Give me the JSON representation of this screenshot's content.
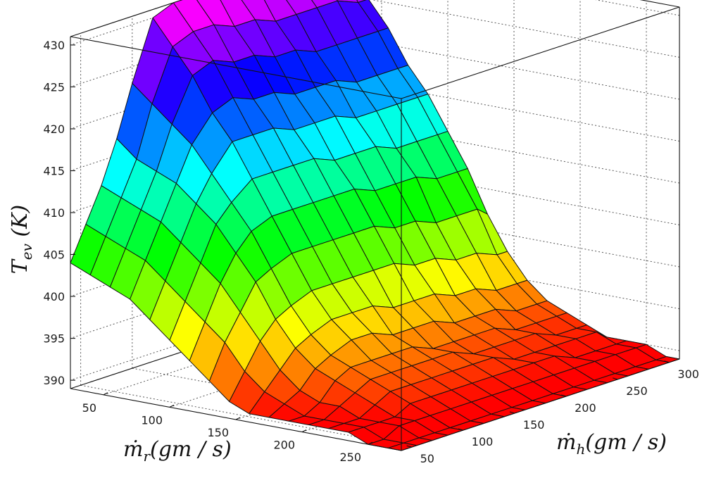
{
  "chart_data": {
    "type": "surface3d",
    "zlabel": {
      "main": "T",
      "sub": "ev",
      "rest": " (K)"
    },
    "xlabel": {
      "main": "ṁ",
      "sub": "r",
      "rest": "(gm / s)"
    },
    "ylabel": {
      "main": "ṁ",
      "sub": "h",
      "rest": "(gm / s)"
    },
    "x_range": [
      25,
      275
    ],
    "y_range": [
      40,
      310
    ],
    "z_range": [
      389,
      431
    ],
    "x_ticks": [
      50,
      100,
      150,
      200,
      250
    ],
    "y_ticks": [
      50,
      100,
      150,
      200,
      250,
      300
    ],
    "z_ticks": [
      390,
      395,
      400,
      405,
      410,
      415,
      420,
      425,
      430
    ],
    "grid": true,
    "colormap": "hsv",
    "mr": [
      25,
      40,
      55,
      70,
      85,
      100,
      115,
      130,
      145,
      160,
      175,
      190,
      205,
      220,
      235,
      250,
      265,
      275
    ],
    "mh": [
      40,
      55,
      70,
      85,
      100,
      120,
      140,
      160,
      180,
      200,
      220,
      240,
      260,
      280,
      300,
      310
    ],
    "t_ev": [
      [
        404,
        408,
        412,
        417,
        423,
        430,
        431,
        431,
        431,
        430,
        430,
        429,
        429,
        429,
        429,
        429
      ],
      [
        403,
        407,
        411,
        415,
        421,
        427,
        428,
        428,
        427,
        427,
        426,
        426,
        426,
        426,
        425,
        425
      ],
      [
        402,
        406,
        410,
        414,
        419,
        424,
        425,
        424,
        424,
        423,
        423,
        422,
        422,
        422,
        422,
        422
      ],
      [
        401,
        405,
        409,
        413,
        417,
        420,
        421,
        420,
        420,
        419,
        419,
        419,
        418,
        418,
        418,
        418
      ],
      [
        399,
        403,
        407,
        411,
        414,
        417,
        417,
        417,
        416,
        416,
        416,
        415,
        415,
        415,
        415,
        415
      ],
      [
        397,
        401,
        405,
        409,
        411,
        413,
        413,
        413,
        413,
        412,
        412,
        412,
        411,
        411,
        411,
        411
      ],
      [
        395,
        399,
        403,
        406,
        408,
        409,
        409,
        409,
        409,
        409,
        408,
        408,
        408,
        407,
        407,
        407
      ],
      [
        393,
        397,
        400,
        403,
        404,
        405,
        405,
        405,
        405,
        405,
        404,
        404,
        403,
        403,
        403,
        402
      ],
      [
        391,
        394,
        397,
        399,
        400,
        401,
        401,
        401,
        401,
        401,
        400,
        400,
        399,
        399,
        398,
        398
      ],
      [
        390,
        392,
        394,
        396,
        397,
        398,
        398,
        398,
        397,
        397,
        397,
        396,
        396,
        395,
        395,
        395
      ],
      [
        390,
        391,
        392,
        394,
        395,
        396,
        396,
        395,
        395,
        395,
        394,
        394,
        394,
        393,
        393,
        393
      ],
      [
        390,
        390,
        391,
        393,
        394,
        394,
        394,
        394,
        393,
        393,
        393,
        393,
        392,
        392,
        392,
        392
      ],
      [
        390,
        390,
        391,
        392,
        393,
        393,
        393,
        393,
        393,
        392,
        392,
        392,
        392,
        391,
        391,
        391
      ],
      [
        390,
        390,
        390,
        391,
        392,
        392,
        392,
        392,
        392,
        392,
        391,
        391,
        391,
        391,
        391,
        390
      ],
      [
        390,
        390,
        390,
        390,
        391,
        391,
        391,
        391,
        391,
        391,
        391,
        391,
        390,
        390,
        390,
        390
      ],
      [
        389,
        389,
        390,
        390,
        390,
        390,
        390,
        390,
        390,
        390,
        390,
        390,
        390,
        390,
        390,
        390
      ],
      [
        389,
        389,
        389,
        389,
        389,
        389,
        389,
        389,
        389,
        389,
        389,
        389,
        389,
        389,
        389,
        389
      ],
      [
        389,
        389,
        389,
        389,
        389,
        389,
        389,
        389,
        389,
        389,
        389,
        389,
        389,
        389,
        389,
        389
      ]
    ]
  }
}
